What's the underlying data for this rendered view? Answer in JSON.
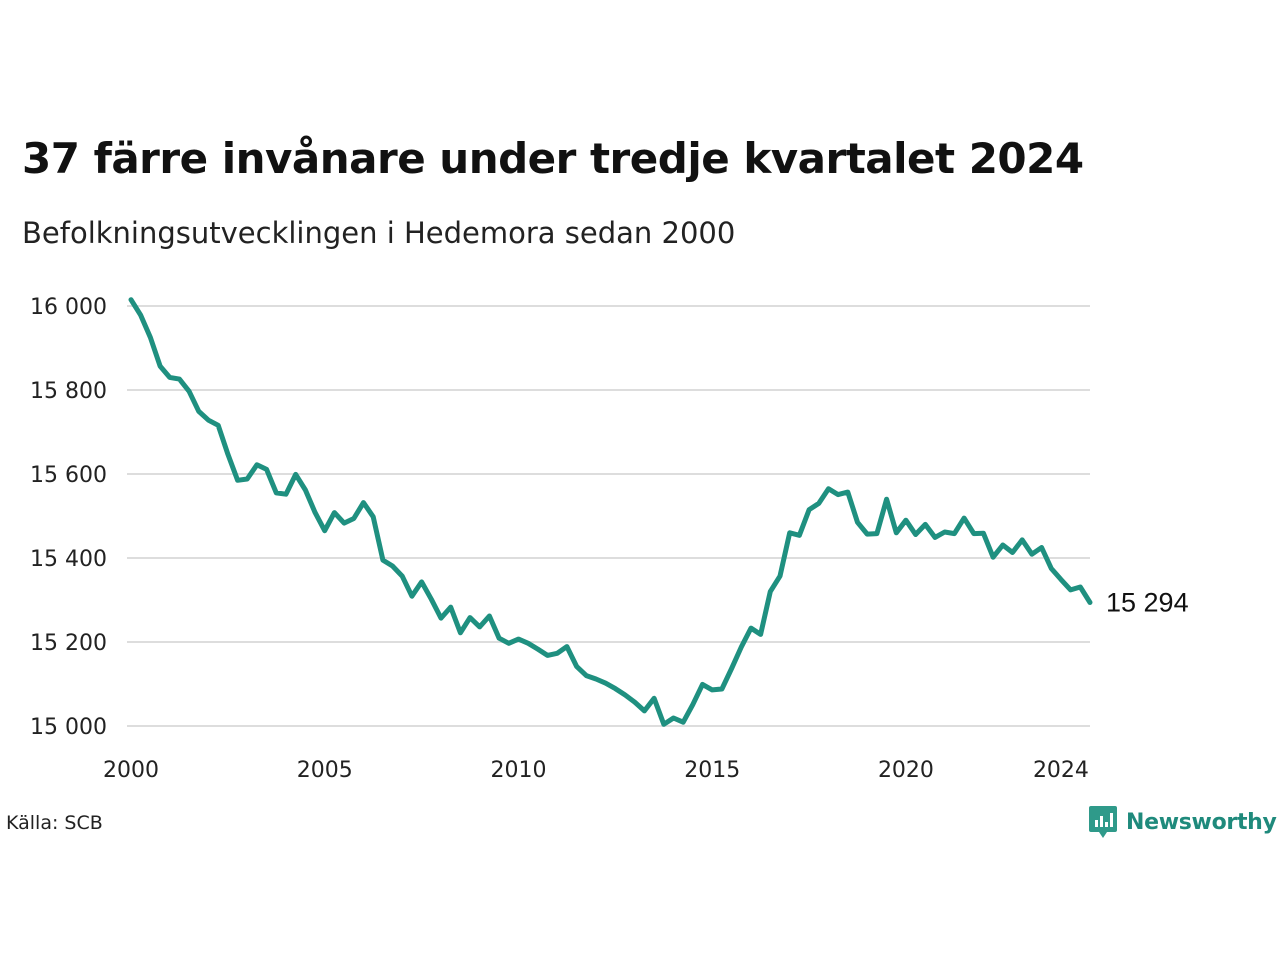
{
  "title": "37 färre invånare under tredje kvartalet 2024",
  "subtitle": "Befolkningsutvecklingen i Hedemora sedan 2000",
  "source": "Källa: SCB",
  "brand": "Newsworthy",
  "colors": {
    "line": "#1f9080",
    "grid": "#dddddd",
    "brand": "#1f8a7c",
    "text": "#111111"
  },
  "chart_data": {
    "type": "line",
    "x_unit": "year (quarterly)",
    "xlim": [
      2000,
      2024.75
    ],
    "ylim": [
      15000,
      16000
    ],
    "y_ticks": [
      16000,
      15800,
      15600,
      15400,
      15200,
      15000
    ],
    "y_tick_labels": [
      "16 000",
      "15 800",
      "15 600",
      "15 400",
      "15 200",
      "15 000"
    ],
    "x_ticks": [
      2000,
      2005,
      2010,
      2015,
      2020,
      2024
    ],
    "x_tick_labels": [
      "2000",
      "2005",
      "2010",
      "2015",
      "2020",
      "2024"
    ],
    "grid": "horizontal",
    "end_label": "15 294",
    "x": [
      2000.0,
      2000.25,
      2000.5,
      2000.75,
      2001.0,
      2001.25,
      2001.5,
      2001.75,
      2002.0,
      2002.25,
      2002.5,
      2002.75,
      2003.0,
      2003.25,
      2003.5,
      2003.75,
      2004.0,
      2004.25,
      2004.5,
      2004.75,
      2005.0,
      2005.25,
      2005.5,
      2005.75,
      2006.0,
      2006.25,
      2006.5,
      2006.75,
      2007.0,
      2007.25,
      2007.5,
      2007.75,
      2008.0,
      2008.25,
      2008.5,
      2008.75,
      2009.0,
      2009.25,
      2009.5,
      2009.75,
      2010.0,
      2010.25,
      2010.5,
      2010.75,
      2011.0,
      2011.25,
      2011.5,
      2011.75,
      2012.0,
      2012.25,
      2012.5,
      2012.75,
      2013.0,
      2013.25,
      2013.5,
      2013.75,
      2014.0,
      2014.25,
      2014.5,
      2014.75,
      2015.0,
      2015.25,
      2015.5,
      2015.75,
      2016.0,
      2016.25,
      2016.5,
      2016.75,
      2017.0,
      2017.25,
      2017.5,
      2017.75,
      2018.0,
      2018.25,
      2018.5,
      2018.75,
      2019.0,
      2019.25,
      2019.5,
      2019.75,
      2020.0,
      2020.25,
      2020.5,
      2020.75,
      2021.0,
      2021.25,
      2021.5,
      2021.75,
      2022.0,
      2022.25,
      2022.5,
      2022.75,
      2023.0,
      2023.25,
      2023.5,
      2023.75,
      2024.0,
      2024.25,
      2024.5,
      2024.75
    ],
    "series": [
      {
        "values": [
          16015,
          15978,
          15925,
          15857,
          15830,
          15826,
          15797,
          15749,
          15728,
          15716,
          15647,
          15585,
          15588,
          15622,
          15611,
          15555,
          15552,
          15599,
          15562,
          15508,
          15465,
          15508,
          15483,
          15494,
          15532,
          15498,
          15395,
          15381,
          15357,
          15309,
          15343,
          15302,
          15257,
          15283,
          15222,
          15258,
          15236,
          15262,
          15209,
          15197,
          15207,
          15197,
          15183,
          15168,
          15173,
          15189,
          15142,
          15120,
          15112,
          15102,
          15089,
          15074,
          15057,
          15036,
          15066,
          15004,
          15019,
          15009,
          15051,
          15099,
          15086,
          15088,
          15137,
          15188,
          15233,
          15218,
          15320,
          15357,
          15460,
          15454,
          15515,
          15530,
          15565,
          15551,
          15557,
          15485,
          15457,
          15458,
          15540,
          15460,
          15490,
          15456,
          15480,
          15449,
          15462,
          15458,
          15495,
          15458,
          15459,
          15402,
          15431,
          15413,
          15443,
          15409,
          15425,
          15375,
          15349,
          15324,
          15331,
          15294
        ]
      }
    ]
  }
}
